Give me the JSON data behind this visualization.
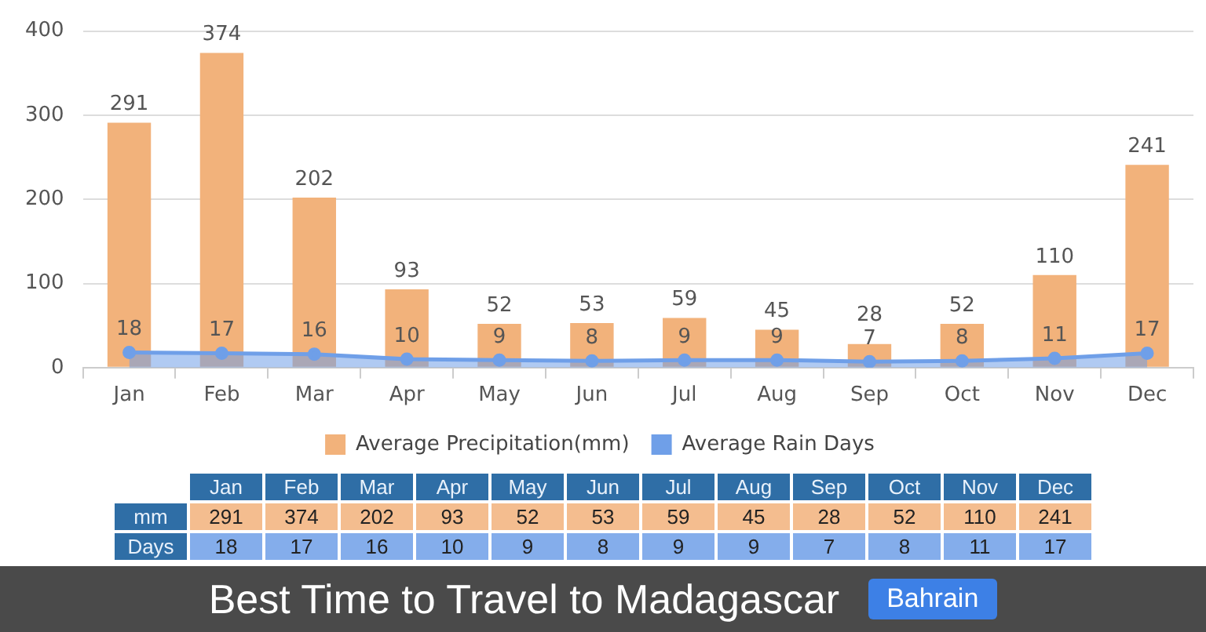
{
  "chart_data": [
    {
      "type": "bar",
      "title": "Best Time to Travel to Madagascar",
      "categories": [
        "Jan",
        "Feb",
        "Mar",
        "Apr",
        "May",
        "Jun",
        "Jul",
        "Aug",
        "Sep",
        "Oct",
        "Nov",
        "Dec"
      ],
      "series": [
        {
          "name": "Average Precipitation(mm)",
          "type": "bar",
          "color": "#f2b27b",
          "values": [
            291,
            374,
            202,
            93,
            52,
            53,
            59,
            45,
            28,
            52,
            110,
            241
          ]
        },
        {
          "name": "Average Rain Days",
          "type": "area",
          "color": "#6f9fe8",
          "values": [
            18,
            17,
            16,
            10,
            9,
            8,
            9,
            9,
            7,
            8,
            11,
            17
          ]
        }
      ],
      "ylim": [
        0,
        400
      ],
      "yticks": [
        0,
        100,
        200,
        300,
        400
      ],
      "grid": "y",
      "legend": "bottom",
      "marker": "circle",
      "data_labels": true,
      "annotations": [
        "Bahrain"
      ]
    },
    {
      "type": "heatmap",
      "categories": [
        "Jan",
        "Feb",
        "Mar",
        "Apr",
        "May",
        "Jun",
        "Jul",
        "Aug",
        "Sep",
        "Oct",
        "Nov",
        "Dec"
      ],
      "y_categories": [
        "mm",
        "Days"
      ],
      "cells": [
        [
          291,
          374,
          202,
          93,
          52,
          53,
          59,
          45,
          28,
          52,
          110,
          241
        ],
        [
          18,
          17,
          16,
          10,
          9,
          8,
          9,
          9,
          7,
          8,
          11,
          17
        ]
      ],
      "data_labels": true
    }
  ]
}
